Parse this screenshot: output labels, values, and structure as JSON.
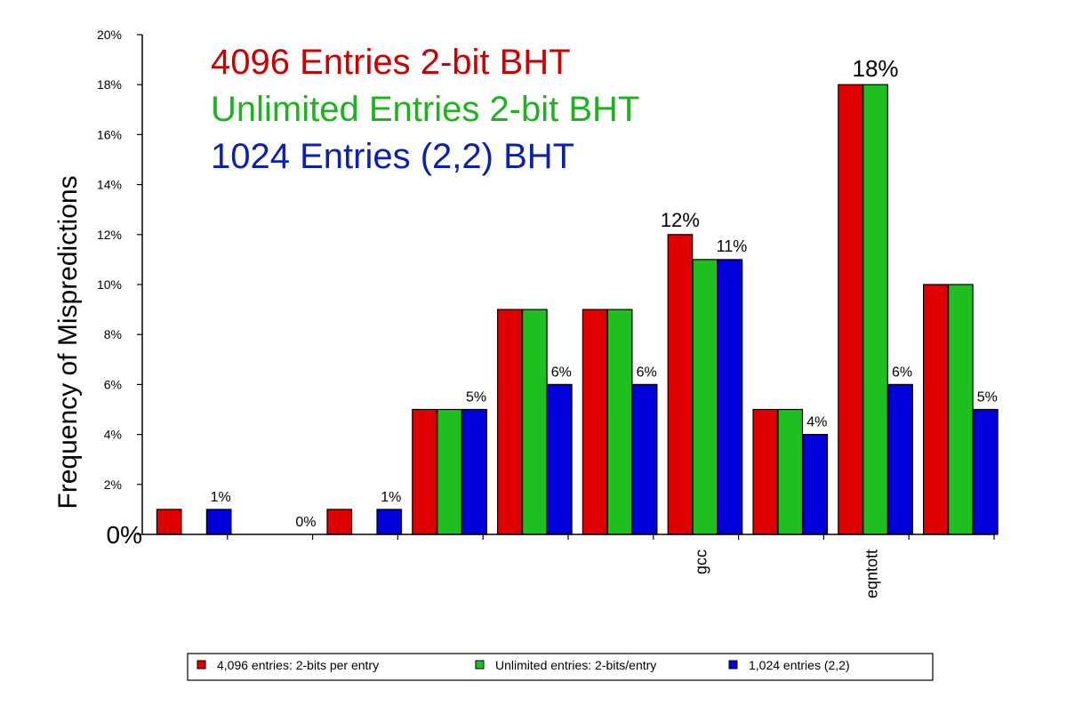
{
  "chart_data": {
    "type": "bar",
    "ylabel": "Frequency of Mispredictions",
    "ylim": [
      0,
      20
    ],
    "yticks": [
      "0%",
      "2%",
      "4%",
      "6%",
      "8%",
      "10%",
      "12%",
      "14%",
      "16%",
      "18%",
      "20%"
    ],
    "categories": [
      "",
      "",
      "",
      "",
      "",
      "",
      "gcc",
      "",
      "eqntott",
      ""
    ],
    "annotation_lines": [
      {
        "text": "4096 Entries 2-bit BHT",
        "color": "#cc0000"
      },
      {
        "text": "Unlimited Entries 2-bit BHT",
        "color": "#1db31d"
      },
      {
        "text": "1024 Entries (2,2) BHT",
        "color": "#0a1fb5"
      }
    ],
    "series": [
      {
        "name": "4,096 entries: 2-bits per entry",
        "color": "#e00000",
        "values": [
          1,
          0,
          1,
          5,
          9,
          9,
          12,
          5,
          18,
          10
        ]
      },
      {
        "name": "Unlimited entries: 2-bits/entry",
        "color": "#1fbf1f",
        "values": [
          0,
          0,
          0,
          5,
          9,
          9,
          11,
          5,
          18,
          10
        ]
      },
      {
        "name": "1,024 entries (2,2)",
        "color": "#0000dd",
        "values": [
          1,
          0,
          1,
          5,
          6,
          6,
          11,
          4,
          6,
          5
        ]
      }
    ],
    "data_labels": [
      {
        "category": 0,
        "series": 2,
        "text": "1%"
      },
      {
        "category": 1,
        "series": 2,
        "text": "0%"
      },
      {
        "category": 2,
        "series": 2,
        "text": "1%"
      },
      {
        "category": 3,
        "series": 2,
        "text": "5%"
      },
      {
        "category": 4,
        "series": 2,
        "text": "6%"
      },
      {
        "category": 5,
        "series": 2,
        "text": "6%"
      },
      {
        "category": 6,
        "series": 0,
        "text": "12%"
      },
      {
        "category": 6,
        "series": 2,
        "text": "11%"
      },
      {
        "category": 7,
        "series": 2,
        "text": "4%"
      },
      {
        "category": 8,
        "series": 1,
        "text": "18%"
      },
      {
        "category": 8,
        "series": 2,
        "text": "6%"
      },
      {
        "category": 9,
        "series": 2,
        "text": "5%"
      }
    ],
    "legend_position": "bottom",
    "grid": false
  }
}
